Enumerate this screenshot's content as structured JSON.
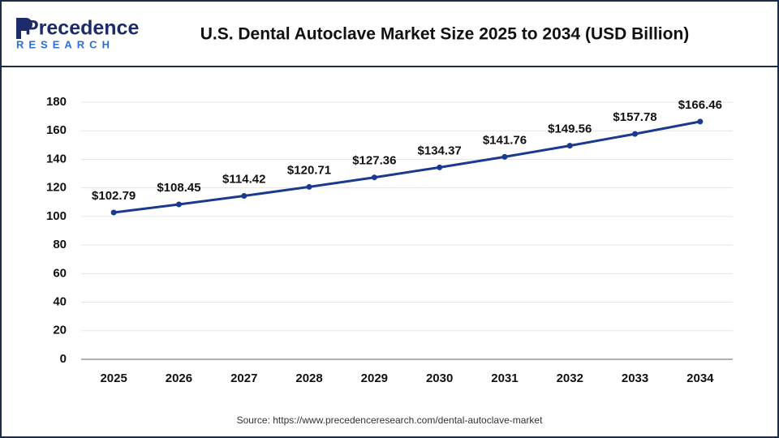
{
  "logo": {
    "name": "Precedence",
    "tagline": "RESEARCH"
  },
  "source": "Source: https://www.precedenceresearch.com/dental-autoclave-market",
  "chart_data": {
    "type": "line",
    "title": "U.S. Dental Autoclave Market Size 2025 to 2034 (USD Billion)",
    "categories": [
      "2025",
      "2026",
      "2027",
      "2028",
      "2029",
      "2030",
      "2031",
      "2032",
      "2033",
      "2034"
    ],
    "series": [
      {
        "color": "#1a3a8f",
        "values": [
          102.79,
          108.45,
          114.42,
          120.71,
          127.36,
          134.37,
          141.76,
          149.56,
          157.78,
          166.46
        ],
        "value_labels": [
          "$102.79",
          "$108.45",
          "$114.42",
          "$120.71",
          "$127.36",
          "$134.37",
          "$141.76",
          "$149.56",
          "$157.78",
          "$166.46"
        ]
      }
    ],
    "ylim": [
      0,
      180
    ],
    "yticks": [
      0,
      20,
      40,
      60,
      80,
      100,
      120,
      140,
      160,
      180
    ],
    "grid": true
  }
}
